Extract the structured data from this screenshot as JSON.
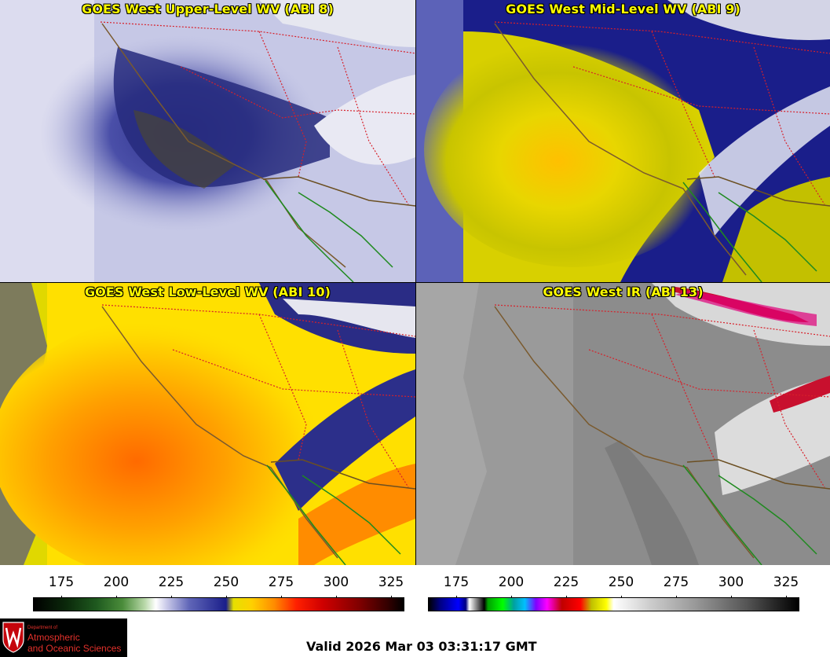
{
  "panels": [
    {
      "title": "GOES West Upper-Level WV (ABI 8)"
    },
    {
      "title": "GOES West Mid-Level WV (ABI 9)"
    },
    {
      "title": "GOES West Low-Level WV (ABI 10)"
    },
    {
      "title": "GOES West IR (ABI 13)"
    }
  ],
  "colorbars": {
    "wv": {
      "ticks": [
        "175",
        "200",
        "225",
        "250",
        "275",
        "300",
        "325"
      ]
    },
    "ir": {
      "ticks": [
        "175",
        "200",
        "225",
        "250",
        "275",
        "300",
        "325"
      ]
    }
  },
  "logo": {
    "line1": "Department of",
    "line2": "Atmospheric",
    "line3": "and Oceanic Sciences"
  },
  "valid_time": "Valid 2026 Mar 03 03:31:17 GMT"
}
